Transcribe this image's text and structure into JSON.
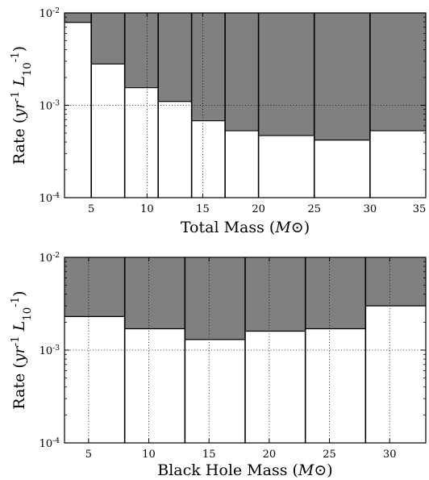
{
  "chart_data": [
    {
      "type": "bar",
      "xlabel": "Total Mass (M⊙)",
      "ylabel": "Rate (yr⁻¹ L₁₀⁻¹)",
      "xlim": [
        2.6,
        35
      ],
      "ylim": [
        0.0001,
        0.01
      ],
      "yscale": "log",
      "grid": true,
      "upper_fill": "#808080",
      "bar_fill": "#ffffff",
      "x_ticks": [
        5,
        10,
        15,
        20,
        25,
        30,
        35
      ],
      "y_ticks": [
        {
          "value": 0.0001,
          "label": "10⁻⁴"
        },
        {
          "value": 0.001,
          "label": "10⁻³"
        },
        {
          "value": 0.01,
          "label": "10⁻²"
        }
      ],
      "bins": [
        {
          "from": 2.6,
          "to": 5.0,
          "value": 0.0079
        },
        {
          "from": 5.0,
          "to": 8.0,
          "value": 0.0028
        },
        {
          "from": 8.0,
          "to": 11.0,
          "value": 0.00155
        },
        {
          "from": 11.0,
          "to": 14.0,
          "value": 0.0011
        },
        {
          "from": 14.0,
          "to": 17.0,
          "value": 0.00068
        },
        {
          "from": 17.0,
          "to": 20.0,
          "value": 0.00053
        },
        {
          "from": 20.0,
          "to": 25.0,
          "value": 0.00047
        },
        {
          "from": 25.0,
          "to": 30.0,
          "value": 0.00042
        },
        {
          "from": 30.0,
          "to": 35.0,
          "value": 0.00053
        }
      ]
    },
    {
      "type": "bar",
      "xlabel": "Black Hole Mass (M⊙)",
      "ylabel": "Rate (yr⁻¹ L₁₀⁻¹)",
      "xlim": [
        3,
        33
      ],
      "ylim": [
        0.0001,
        0.01
      ],
      "yscale": "log",
      "grid": true,
      "upper_fill": "#808080",
      "bar_fill": "#ffffff",
      "x_ticks": [
        5,
        10,
        15,
        20,
        25,
        30
      ],
      "y_ticks": [
        {
          "value": 0.0001,
          "label": "10⁻⁴"
        },
        {
          "value": 0.001,
          "label": "10⁻³"
        },
        {
          "value": 0.01,
          "label": "10⁻²"
        }
      ],
      "bins": [
        {
          "from": 3.0,
          "to": 8.0,
          "value": 0.0023
        },
        {
          "from": 8.0,
          "to": 13.0,
          "value": 0.0017
        },
        {
          "from": 13.0,
          "to": 18.0,
          "value": 0.0013
        },
        {
          "from": 18.0,
          "to": 23.0,
          "value": 0.0016
        },
        {
          "from": 23.0,
          "to": 28.0,
          "value": 0.0017
        },
        {
          "from": 28.0,
          "to": 33.0,
          "value": 0.003
        }
      ]
    }
  ]
}
